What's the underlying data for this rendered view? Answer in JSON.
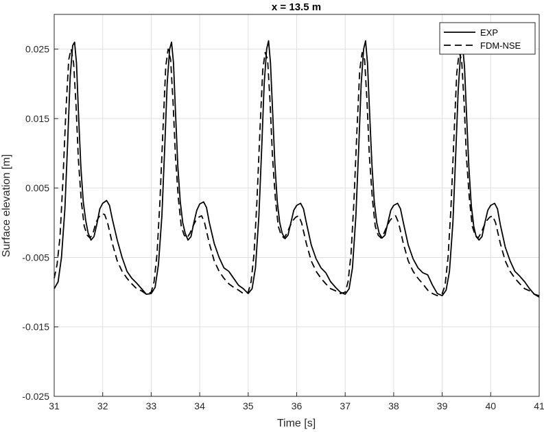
{
  "chart_data": {
    "type": "line",
    "title": "x = 13.5 m",
    "xlabel": "Time [s]",
    "ylabel": "Surface elevation [m]",
    "xlim": [
      31,
      41
    ],
    "ylim": [
      -0.025,
      0.03
    ],
    "xticks": [
      "31",
      "32",
      "33",
      "34",
      "35",
      "36",
      "37",
      "38",
      "39",
      "40",
      "41"
    ],
    "yticks": [
      "-0.025",
      "-0.015",
      "-0.005",
      "0.005",
      "0.015",
      "0.025"
    ],
    "grid": true,
    "legend_position": "top-right",
    "series": [
      {
        "name": "EXP",
        "style": "solid",
        "color": "#000000",
        "points": [
          [
            31.0,
            -0.0095
          ],
          [
            31.08,
            -0.0085
          ],
          [
            31.15,
            -0.005
          ],
          [
            31.22,
            0.002
          ],
          [
            31.28,
            0.012
          ],
          [
            31.33,
            0.021
          ],
          [
            31.38,
            0.0255
          ],
          [
            31.42,
            0.026
          ],
          [
            31.46,
            0.023
          ],
          [
            31.5,
            0.016
          ],
          [
            31.55,
            0.008
          ],
          [
            31.6,
            0.003
          ],
          [
            31.65,
            0.0003
          ],
          [
            31.7,
            -0.0015
          ],
          [
            31.76,
            -0.0025
          ],
          [
            31.82,
            -0.002
          ],
          [
            31.88,
            -0.0002
          ],
          [
            31.94,
            0.002
          ],
          [
            32.0,
            0.0028
          ],
          [
            32.08,
            0.0032
          ],
          [
            32.14,
            0.0025
          ],
          [
            32.2,
            0.0005
          ],
          [
            32.3,
            -0.0025
          ],
          [
            32.4,
            -0.005
          ],
          [
            32.5,
            -0.007
          ],
          [
            32.6,
            -0.008
          ],
          [
            32.7,
            -0.0087
          ],
          [
            32.8,
            -0.0095
          ],
          [
            32.9,
            -0.0103
          ],
          [
            33.0,
            -0.0102
          ],
          [
            33.08,
            -0.0093
          ],
          [
            33.15,
            -0.006
          ],
          [
            33.22,
            0.001
          ],
          [
            33.28,
            0.011
          ],
          [
            33.33,
            0.02
          ],
          [
            33.38,
            0.025
          ],
          [
            33.42,
            0.026
          ],
          [
            33.46,
            0.023
          ],
          [
            33.5,
            0.016
          ],
          [
            33.55,
            0.008
          ],
          [
            33.6,
            0.003
          ],
          [
            33.65,
            0.0
          ],
          [
            33.7,
            -0.0015
          ],
          [
            33.76,
            -0.0025
          ],
          [
            33.82,
            -0.002
          ],
          [
            33.88,
            -0.0
          ],
          [
            33.94,
            0.0018
          ],
          [
            34.0,
            0.0027
          ],
          [
            34.08,
            0.003
          ],
          [
            34.14,
            0.0022
          ],
          [
            34.2,
            0.0
          ],
          [
            34.3,
            -0.003
          ],
          [
            34.4,
            -0.005
          ],
          [
            34.5,
            -0.0065
          ],
          [
            34.6,
            -0.007
          ],
          [
            34.7,
            -0.008
          ],
          [
            34.8,
            -0.009
          ],
          [
            34.9,
            -0.0095
          ],
          [
            35.0,
            -0.0102
          ],
          [
            35.08,
            -0.0095
          ],
          [
            35.15,
            -0.0065
          ],
          [
            35.22,
            0.001
          ],
          [
            35.28,
            0.011
          ],
          [
            35.33,
            0.02
          ],
          [
            35.38,
            0.025
          ],
          [
            35.42,
            0.0262
          ],
          [
            35.46,
            0.023
          ],
          [
            35.5,
            0.0165
          ],
          [
            35.55,
            0.0085
          ],
          [
            35.6,
            0.003
          ],
          [
            35.65,
            0.0
          ],
          [
            35.7,
            -0.0015
          ],
          [
            35.76,
            -0.0023
          ],
          [
            35.82,
            -0.0018
          ],
          [
            35.88,
            0.0
          ],
          [
            35.94,
            0.0018
          ],
          [
            36.0,
            0.0025
          ],
          [
            36.08,
            0.0028
          ],
          [
            36.14,
            0.002
          ],
          [
            36.2,
            0.0
          ],
          [
            36.3,
            -0.0032
          ],
          [
            36.4,
            -0.0052
          ],
          [
            36.5,
            -0.0065
          ],
          [
            36.6,
            -0.0072
          ],
          [
            36.7,
            -0.0085
          ],
          [
            36.8,
            -0.0093
          ],
          [
            36.9,
            -0.01
          ],
          [
            37.0,
            -0.0103
          ],
          [
            37.08,
            -0.0095
          ],
          [
            37.15,
            -0.0065
          ],
          [
            37.22,
            0.001
          ],
          [
            37.28,
            0.011
          ],
          [
            37.33,
            0.02
          ],
          [
            37.38,
            0.025
          ],
          [
            37.42,
            0.0262
          ],
          [
            37.46,
            0.023
          ],
          [
            37.5,
            0.0165
          ],
          [
            37.55,
            0.0085
          ],
          [
            37.6,
            0.003
          ],
          [
            37.65,
            0.0
          ],
          [
            37.7,
            -0.0015
          ],
          [
            37.76,
            -0.0022
          ],
          [
            37.82,
            -0.0018
          ],
          [
            37.88,
            0.0
          ],
          [
            37.94,
            0.0018
          ],
          [
            38.0,
            0.0025
          ],
          [
            38.08,
            0.0028
          ],
          [
            38.14,
            0.002
          ],
          [
            38.2,
            0.0
          ],
          [
            38.3,
            -0.0032
          ],
          [
            38.4,
            -0.0052
          ],
          [
            38.5,
            -0.0065
          ],
          [
            38.6,
            -0.0072
          ],
          [
            38.7,
            -0.0075
          ],
          [
            38.8,
            -0.009
          ],
          [
            38.9,
            -0.0102
          ],
          [
            39.0,
            -0.0105
          ],
          [
            39.08,
            -0.0097
          ],
          [
            39.15,
            -0.007
          ],
          [
            39.22,
            0.0
          ],
          [
            39.28,
            0.01
          ],
          [
            39.33,
            0.019
          ],
          [
            39.38,
            0.0245
          ],
          [
            39.42,
            0.0255
          ],
          [
            39.46,
            0.0225
          ],
          [
            39.5,
            0.016
          ],
          [
            39.55,
            0.008
          ],
          [
            39.6,
            0.0025
          ],
          [
            39.65,
            -0.0005
          ],
          [
            39.7,
            -0.002
          ],
          [
            39.76,
            -0.0025
          ],
          [
            39.82,
            -0.002
          ],
          [
            39.88,
            -0.0
          ],
          [
            39.94,
            0.0018
          ],
          [
            40.0,
            0.0025
          ],
          [
            40.08,
            0.0028
          ],
          [
            40.14,
            0.002
          ],
          [
            40.2,
            -0.0003
          ],
          [
            40.3,
            -0.0035
          ],
          [
            40.4,
            -0.0055
          ],
          [
            40.5,
            -0.007
          ],
          [
            40.6,
            -0.0077
          ],
          [
            40.7,
            -0.0085
          ],
          [
            40.8,
            -0.0095
          ],
          [
            40.9,
            -0.0103
          ],
          [
            41.0,
            -0.0107
          ]
        ]
      },
      {
        "name": "FDM-NSE",
        "style": "dashed",
        "color": "#000000",
        "points": [
          [
            31.0,
            -0.008
          ],
          [
            31.06,
            -0.006
          ],
          [
            31.12,
            -0.002
          ],
          [
            31.18,
            0.006
          ],
          [
            31.24,
            0.016
          ],
          [
            31.3,
            0.0235
          ],
          [
            31.35,
            0.025
          ],
          [
            31.4,
            0.023
          ],
          [
            31.45,
            0.017
          ],
          [
            31.5,
            0.009
          ],
          [
            31.56,
            0.003
          ],
          [
            31.62,
            -0.0005
          ],
          [
            31.68,
            -0.0018
          ],
          [
            31.74,
            -0.0022
          ],
          [
            31.8,
            -0.0015
          ],
          [
            31.86,
            -0.0
          ],
          [
            31.92,
            0.0008
          ],
          [
            31.98,
            0.0013
          ],
          [
            32.04,
            0.0012
          ],
          [
            32.1,
            0.0
          ],
          [
            32.2,
            -0.003
          ],
          [
            32.3,
            -0.0055
          ],
          [
            32.4,
            -0.007
          ],
          [
            32.5,
            -0.008
          ],
          [
            32.6,
            -0.0088
          ],
          [
            32.7,
            -0.0095
          ],
          [
            32.8,
            -0.0098
          ],
          [
            32.9,
            -0.0103
          ],
          [
            33.0,
            -0.01
          ],
          [
            33.06,
            -0.0085
          ],
          [
            33.12,
            -0.0045
          ],
          [
            33.18,
            0.003
          ],
          [
            33.24,
            0.013
          ],
          [
            33.3,
            0.0225
          ],
          [
            33.35,
            0.025
          ],
          [
            33.4,
            0.0235
          ],
          [
            33.45,
            0.0175
          ],
          [
            33.5,
            0.0095
          ],
          [
            33.56,
            0.0035
          ],
          [
            33.62,
            -0.0005
          ],
          [
            33.68,
            -0.0018
          ],
          [
            33.74,
            -0.0022
          ],
          [
            33.8,
            -0.0015
          ],
          [
            33.86,
            -0.0005
          ],
          [
            33.92,
            0.0003
          ],
          [
            33.98,
            0.0008
          ],
          [
            34.04,
            0.001
          ],
          [
            34.1,
            0.0
          ],
          [
            34.2,
            -0.003
          ],
          [
            34.3,
            -0.0055
          ],
          [
            34.4,
            -0.007
          ],
          [
            34.5,
            -0.008
          ],
          [
            34.6,
            -0.0088
          ],
          [
            34.7,
            -0.0093
          ],
          [
            34.8,
            -0.0097
          ],
          [
            34.9,
            -0.0102
          ],
          [
            35.0,
            -0.01
          ],
          [
            35.06,
            -0.0085
          ],
          [
            35.12,
            -0.0045
          ],
          [
            35.18,
            0.003
          ],
          [
            35.24,
            0.013
          ],
          [
            35.3,
            0.022
          ],
          [
            35.35,
            0.0245
          ],
          [
            35.4,
            0.0235
          ],
          [
            35.45,
            0.0175
          ],
          [
            35.5,
            0.0095
          ],
          [
            35.56,
            0.0035
          ],
          [
            35.62,
            -0.0005
          ],
          [
            35.68,
            -0.0018
          ],
          [
            35.74,
            -0.0022
          ],
          [
            35.8,
            -0.0015
          ],
          [
            35.86,
            -0.0005
          ],
          [
            35.92,
            0.0003
          ],
          [
            35.98,
            0.0008
          ],
          [
            36.04,
            0.001
          ],
          [
            36.1,
            0.0
          ],
          [
            36.2,
            -0.003
          ],
          [
            36.3,
            -0.0055
          ],
          [
            36.4,
            -0.007
          ],
          [
            36.5,
            -0.008
          ],
          [
            36.6,
            -0.0088
          ],
          [
            36.7,
            -0.0095
          ],
          [
            36.8,
            -0.0098
          ],
          [
            36.9,
            -0.0102
          ],
          [
            37.0,
            -0.01
          ],
          [
            37.06,
            -0.0085
          ],
          [
            37.12,
            -0.0045
          ],
          [
            37.18,
            0.003
          ],
          [
            37.24,
            0.013
          ],
          [
            37.3,
            0.022
          ],
          [
            37.35,
            0.0245
          ],
          [
            37.4,
            0.0235
          ],
          [
            37.45,
            0.0175
          ],
          [
            37.5,
            0.0095
          ],
          [
            37.56,
            0.0035
          ],
          [
            37.62,
            -0.0005
          ],
          [
            37.68,
            -0.0018
          ],
          [
            37.74,
            -0.0022
          ],
          [
            37.8,
            -0.0015
          ],
          [
            37.86,
            -0.0005
          ],
          [
            37.92,
            0.0003
          ],
          [
            37.98,
            0.0008
          ],
          [
            38.04,
            0.001
          ],
          [
            38.1,
            0.0
          ],
          [
            38.2,
            -0.003
          ],
          [
            38.3,
            -0.0055
          ],
          [
            38.4,
            -0.007
          ],
          [
            38.5,
            -0.008
          ],
          [
            38.6,
            -0.0088
          ],
          [
            38.7,
            -0.0097
          ],
          [
            38.8,
            -0.0102
          ],
          [
            38.9,
            -0.0105
          ],
          [
            39.0,
            -0.0102
          ],
          [
            39.06,
            -0.009
          ],
          [
            39.12,
            -0.005
          ],
          [
            39.18,
            0.002
          ],
          [
            39.24,
            0.012
          ],
          [
            39.3,
            0.0215
          ],
          [
            39.35,
            0.0245
          ],
          [
            39.4,
            0.0235
          ],
          [
            39.45,
            0.0175
          ],
          [
            39.5,
            0.0095
          ],
          [
            39.56,
            0.0035
          ],
          [
            39.62,
            -0.0005
          ],
          [
            39.68,
            -0.0018
          ],
          [
            39.74,
            -0.0022
          ],
          [
            39.8,
            -0.0015
          ],
          [
            39.86,
            -0.0005
          ],
          [
            39.92,
            0.0003
          ],
          [
            39.98,
            0.0008
          ],
          [
            40.04,
            0.001
          ],
          [
            40.1,
            0.0
          ],
          [
            40.2,
            -0.003
          ],
          [
            40.3,
            -0.0055
          ],
          [
            40.4,
            -0.007
          ],
          [
            40.5,
            -0.008
          ],
          [
            40.6,
            -0.0088
          ],
          [
            40.7,
            -0.0095
          ],
          [
            40.8,
            -0.0098
          ],
          [
            40.9,
            -0.0103
          ],
          [
            41.0,
            -0.0105
          ]
        ]
      }
    ]
  }
}
